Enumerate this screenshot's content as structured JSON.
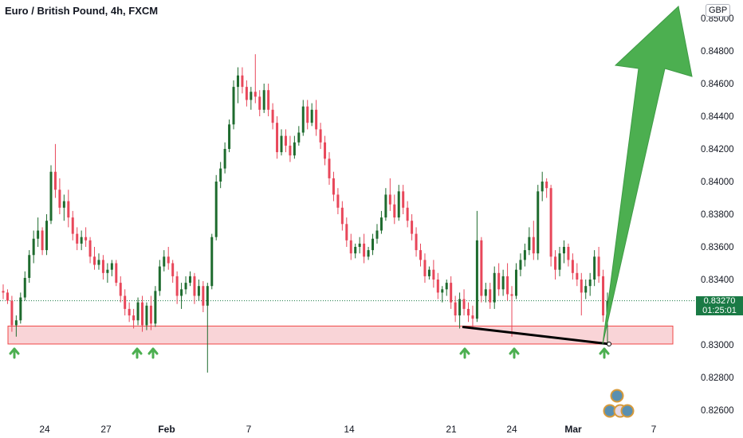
{
  "header": {
    "title": "Euro / British Pound, 4h, FXCM",
    "currency": "GBP"
  },
  "price_label": {
    "price": "0.83270",
    "countdown": "01:25:01"
  },
  "chart_data": {
    "type": "candlestick",
    "symbol": "EUR/GBP",
    "timeframe": "4h",
    "ylim": [
      0.8255,
      0.8502
    ],
    "y_ticks": [
      "0.82600",
      "0.82800",
      "0.83000",
      "0.83200",
      "0.83400",
      "0.83600",
      "0.83800",
      "0.84000",
      "0.84200",
      "0.84400",
      "0.84600",
      "0.84800",
      "0.85000"
    ],
    "x_ticks": [
      {
        "label": "24",
        "bold": false
      },
      {
        "label": "27",
        "bold": false
      },
      {
        "label": "Feb",
        "bold": true
      },
      {
        "label": "7",
        "bold": false
      },
      {
        "label": "14",
        "bold": false
      },
      {
        "label": "21",
        "bold": false
      },
      {
        "label": "24",
        "bold": false
      },
      {
        "label": "Mar",
        "bold": true
      },
      {
        "label": "7",
        "bold": false
      }
    ],
    "current_price": 0.8327,
    "colors": {
      "up": "#1e6b2e",
      "down": "#e8475a",
      "support": "#f9d4d7",
      "support_border": "#f04747",
      "arrow": "#4caf50"
    },
    "support_zone": [
      0.83005,
      0.83115
    ],
    "trendline": [
      [
        0.8311,
        0.83005
      ]
    ],
    "candles": [
      [
        0.8333,
        0.8337,
        0.8328,
        0.8332
      ],
      [
        0.8332,
        0.8334,
        0.8325,
        0.8327
      ],
      [
        0.8327,
        0.833,
        0.8308,
        0.8312
      ],
      [
        0.8312,
        0.8318,
        0.8305,
        0.8315
      ],
      [
        0.8315,
        0.8332,
        0.8313,
        0.8329
      ],
      [
        0.8329,
        0.8345,
        0.8327,
        0.8341
      ],
      [
        0.8341,
        0.8358,
        0.8338,
        0.8355
      ],
      [
        0.8355,
        0.837,
        0.835,
        0.8365
      ],
      [
        0.8365,
        0.8378,
        0.836,
        0.837
      ],
      [
        0.837,
        0.8372,
        0.8355,
        0.8358
      ],
      [
        0.8358,
        0.838,
        0.8355,
        0.8376
      ],
      [
        0.8376,
        0.841,
        0.8374,
        0.8406
      ],
      [
        0.8406,
        0.8423,
        0.839,
        0.8395
      ],
      [
        0.8395,
        0.8402,
        0.838,
        0.8384
      ],
      [
        0.8384,
        0.8392,
        0.8376,
        0.8388
      ],
      [
        0.8388,
        0.8395,
        0.8372,
        0.8378
      ],
      [
        0.8378,
        0.8382,
        0.8364,
        0.8368
      ],
      [
        0.8368,
        0.8372,
        0.8358,
        0.8362
      ],
      [
        0.8362,
        0.837,
        0.8358,
        0.8366
      ],
      [
        0.8366,
        0.8372,
        0.836,
        0.8364
      ],
      [
        0.8364,
        0.8366,
        0.835,
        0.8354
      ],
      [
        0.8354,
        0.836,
        0.8346,
        0.8349
      ],
      [
        0.8349,
        0.8356,
        0.8346,
        0.8352
      ],
      [
        0.8352,
        0.8355,
        0.834,
        0.8344
      ],
      [
        0.8344,
        0.835,
        0.8338,
        0.8346
      ],
      [
        0.8346,
        0.8352,
        0.8342,
        0.835
      ],
      [
        0.835,
        0.8352,
        0.8336,
        0.8338
      ],
      [
        0.8338,
        0.8342,
        0.8326,
        0.833
      ],
      [
        0.833,
        0.8334,
        0.8318,
        0.8322
      ],
      [
        0.8322,
        0.8326,
        0.8314,
        0.8318
      ],
      [
        0.8318,
        0.8322,
        0.831,
        0.8315
      ],
      [
        0.8315,
        0.8329,
        0.8312,
        0.8326
      ],
      [
        0.8326,
        0.833,
        0.8308,
        0.8312
      ],
      [
        0.8312,
        0.8326,
        0.8309,
        0.8324
      ],
      [
        0.8324,
        0.833,
        0.8309,
        0.8313
      ],
      [
        0.8313,
        0.8336,
        0.8311,
        0.8333
      ],
      [
        0.8333,
        0.8352,
        0.833,
        0.8348
      ],
      [
        0.8348,
        0.8358,
        0.8345,
        0.8354
      ],
      [
        0.8354,
        0.836,
        0.8346,
        0.835
      ],
      [
        0.835,
        0.8352,
        0.8338,
        0.8342
      ],
      [
        0.8342,
        0.8345,
        0.8325,
        0.833
      ],
      [
        0.833,
        0.8338,
        0.8322,
        0.8334
      ],
      [
        0.8334,
        0.8342,
        0.8331,
        0.8338
      ],
      [
        0.8338,
        0.8345,
        0.8336,
        0.8342
      ],
      [
        0.8342,
        0.8344,
        0.8325,
        0.833
      ],
      [
        0.833,
        0.834,
        0.8327,
        0.8336
      ],
      [
        0.8336,
        0.8339,
        0.832,
        0.8324
      ],
      [
        0.8324,
        0.8338,
        0.8283,
        0.8336
      ],
      [
        0.8336,
        0.8368,
        0.8334,
        0.8366
      ],
      [
        0.8366,
        0.8404,
        0.8364,
        0.84
      ],
      [
        0.84,
        0.8412,
        0.8396,
        0.8408
      ],
      [
        0.8408,
        0.8424,
        0.8405,
        0.842
      ],
      [
        0.842,
        0.8438,
        0.8418,
        0.8435
      ],
      [
        0.8435,
        0.8462,
        0.8432,
        0.8458
      ],
      [
        0.8458,
        0.847,
        0.8448,
        0.8465
      ],
      [
        0.8465,
        0.847,
        0.8454,
        0.8458
      ],
      [
        0.8458,
        0.8462,
        0.8446,
        0.845
      ],
      [
        0.845,
        0.8458,
        0.8444,
        0.8455
      ],
      [
        0.8455,
        0.8478,
        0.8448,
        0.8452
      ],
      [
        0.8452,
        0.8456,
        0.844,
        0.8444
      ],
      [
        0.8444,
        0.846,
        0.8442,
        0.8456
      ],
      [
        0.8456,
        0.846,
        0.844,
        0.8444
      ],
      [
        0.8444,
        0.8448,
        0.8432,
        0.8436
      ],
      [
        0.8436,
        0.844,
        0.8414,
        0.8418
      ],
      [
        0.8418,
        0.8432,
        0.8416,
        0.8428
      ],
      [
        0.8428,
        0.8432,
        0.8418,
        0.8422
      ],
      [
        0.8422,
        0.8428,
        0.8412,
        0.8416
      ],
      [
        0.8416,
        0.8428,
        0.8414,
        0.8424
      ],
      [
        0.8424,
        0.8434,
        0.8422,
        0.843
      ],
      [
        0.843,
        0.845,
        0.8428,
        0.8446
      ],
      [
        0.8446,
        0.845,
        0.8432,
        0.8436
      ],
      [
        0.8436,
        0.8448,
        0.8434,
        0.8444
      ],
      [
        0.8444,
        0.845,
        0.8428,
        0.8432
      ],
      [
        0.8432,
        0.8436,
        0.842,
        0.8424
      ],
      [
        0.8424,
        0.8428,
        0.841,
        0.8414
      ],
      [
        0.8414,
        0.8418,
        0.8398,
        0.8402
      ],
      [
        0.8402,
        0.8406,
        0.8388,
        0.8392
      ],
      [
        0.8392,
        0.8396,
        0.838,
        0.8384
      ],
      [
        0.8384,
        0.8388,
        0.837,
        0.8374
      ],
      [
        0.8374,
        0.8378,
        0.836,
        0.8364
      ],
      [
        0.8364,
        0.8368,
        0.8352,
        0.8356
      ],
      [
        0.8356,
        0.8362,
        0.8353,
        0.836
      ],
      [
        0.836,
        0.8366,
        0.8356,
        0.8362
      ],
      [
        0.8362,
        0.8368,
        0.835,
        0.8354
      ],
      [
        0.8354,
        0.836,
        0.8352,
        0.8358
      ],
      [
        0.8358,
        0.8368,
        0.8355,
        0.8365
      ],
      [
        0.8365,
        0.8374,
        0.8362,
        0.837
      ],
      [
        0.837,
        0.8382,
        0.8368,
        0.8378
      ],
      [
        0.8378,
        0.8396,
        0.8376,
        0.8392
      ],
      [
        0.8392,
        0.8402,
        0.8382,
        0.8386
      ],
      [
        0.8386,
        0.8392,
        0.8374,
        0.8378
      ],
      [
        0.8378,
        0.8398,
        0.8376,
        0.8394
      ],
      [
        0.8394,
        0.8398,
        0.838,
        0.8384
      ],
      [
        0.8384,
        0.8388,
        0.8372,
        0.8376
      ],
      [
        0.8376,
        0.838,
        0.8364,
        0.8368
      ],
      [
        0.8368,
        0.8372,
        0.8354,
        0.8358
      ],
      [
        0.8358,
        0.8362,
        0.8348,
        0.8352
      ],
      [
        0.8352,
        0.8356,
        0.8338,
        0.8342
      ],
      [
        0.8342,
        0.8348,
        0.834,
        0.8346
      ],
      [
        0.8346,
        0.8352,
        0.8335,
        0.834
      ],
      [
        0.834,
        0.8344,
        0.8328,
        0.8332
      ],
      [
        0.8332,
        0.8336,
        0.8326,
        0.8334
      ],
      [
        0.8334,
        0.834,
        0.833,
        0.8338
      ],
      [
        0.8338,
        0.8342,
        0.8322,
        0.8326
      ],
      [
        0.8326,
        0.833,
        0.8314,
        0.8318
      ],
      [
        0.8318,
        0.8332,
        0.831,
        0.8328
      ],
      [
        0.8328,
        0.8334,
        0.8318,
        0.8322
      ],
      [
        0.8322,
        0.8326,
        0.8314,
        0.8318
      ],
      [
        0.8318,
        0.8324,
        0.831,
        0.8316
      ],
      [
        0.8316,
        0.8382,
        0.8314,
        0.8364
      ],
      [
        0.8364,
        0.8366,
        0.8326,
        0.833
      ],
      [
        0.833,
        0.8338,
        0.8326,
        0.8334
      ],
      [
        0.8334,
        0.8338,
        0.8322,
        0.8326
      ],
      [
        0.8326,
        0.8348,
        0.8322,
        0.8344
      ],
      [
        0.8344,
        0.835,
        0.833,
        0.8334
      ],
      [
        0.8334,
        0.8346,
        0.833,
        0.8342
      ],
      [
        0.8342,
        0.835,
        0.8327,
        0.8331
      ],
      [
        0.8331,
        0.8336,
        0.8305,
        0.833
      ],
      [
        0.833,
        0.835,
        0.8328,
        0.8346
      ],
      [
        0.8346,
        0.8356,
        0.8342,
        0.8352
      ],
      [
        0.8352,
        0.8362,
        0.8348,
        0.8358
      ],
      [
        0.8358,
        0.8372,
        0.8355,
        0.8366
      ],
      [
        0.8366,
        0.8376,
        0.8352,
        0.8356
      ],
      [
        0.8356,
        0.8398,
        0.8352,
        0.8394
      ],
      [
        0.8394,
        0.8406,
        0.8388,
        0.84
      ],
      [
        0.84,
        0.8402,
        0.839,
        0.8396
      ],
      [
        0.8396,
        0.8398,
        0.8348,
        0.8354
      ],
      [
        0.8354,
        0.8358,
        0.834,
        0.8346
      ],
      [
        0.8346,
        0.836,
        0.8342,
        0.8356
      ],
      [
        0.8356,
        0.8364,
        0.835,
        0.836
      ],
      [
        0.836,
        0.8362,
        0.8348,
        0.8352
      ],
      [
        0.8352,
        0.8356,
        0.834,
        0.8344
      ],
      [
        0.8344,
        0.835,
        0.8336,
        0.834
      ],
      [
        0.834,
        0.8344,
        0.8318,
        0.8332
      ],
      [
        0.8332,
        0.834,
        0.8328,
        0.8336
      ],
      [
        0.8336,
        0.8344,
        0.833,
        0.834
      ],
      [
        0.834,
        0.8358,
        0.8336,
        0.8354
      ],
      [
        0.8354,
        0.836,
        0.8338,
        0.8342
      ],
      [
        0.8342,
        0.8346,
        0.8314,
        0.8318
      ],
      [
        0.8318,
        0.8332,
        0.83,
        0.8327
      ]
    ]
  }
}
